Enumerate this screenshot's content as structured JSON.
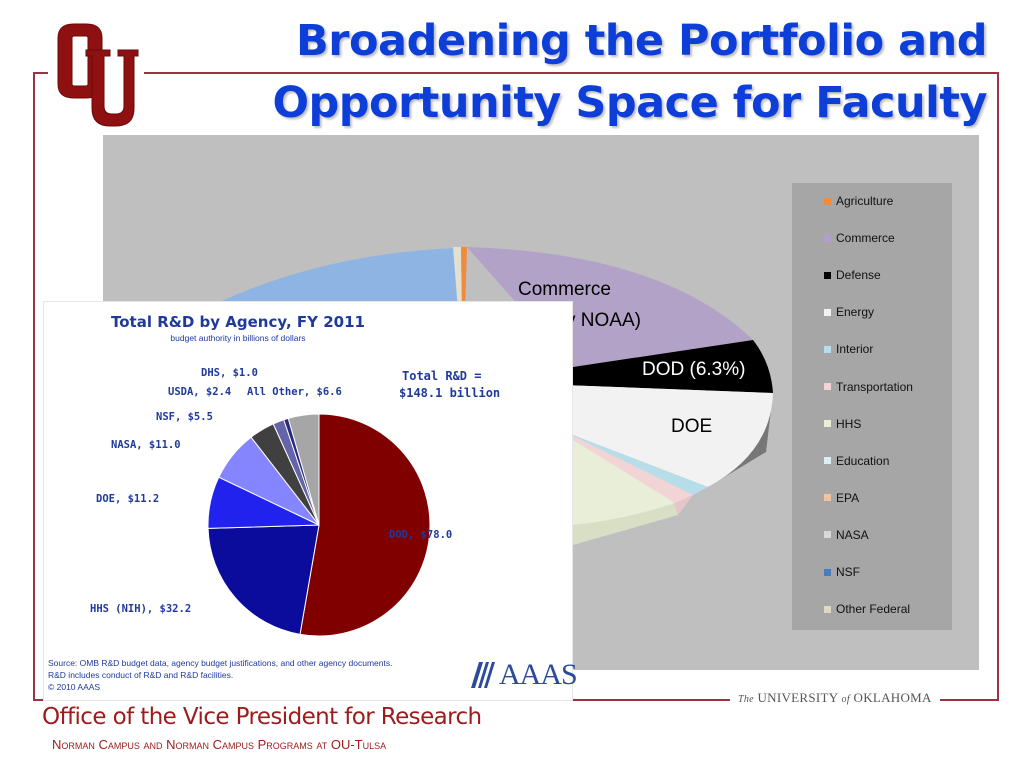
{
  "slide": {
    "title_line1": "Broadening the Portfolio and",
    "title_line2": "Opportunity Space for Faculty",
    "footer_office": "Office of the Vice President for Research",
    "footer_campus": "Norman Campus and Norman Campus Programs at OU-Tulsa",
    "university": "UNIVERSITY",
    "university_the": "The",
    "university_of": "of",
    "university_state": "OKLAHOMA",
    "logo_text": "OU",
    "colors": {
      "title_blue": "#0d3fd8",
      "crimson": "#9b1c1c",
      "frame": "#9b3440"
    }
  },
  "chart_data": [
    {
      "type": "pie",
      "style": "3d-exploded",
      "legend_position": "right",
      "legend": [
        "Agriculture",
        "Commerce",
        "Defense",
        "Energy",
        "Interior",
        "Transportation",
        "HHS",
        "Education",
        "EPA",
        "NASA",
        "NSF",
        "Other Federal"
      ],
      "legend_colors": [
        "#f08a3c",
        "#b09fcc",
        "#000000",
        "#f2f2f2",
        "#b7dde8",
        "#f2d4d6",
        "#e9eed9",
        "#dbeef4",
        "#f6c29c",
        "#d9d9d9",
        "#4a7ebb",
        "#ddd9c3"
      ],
      "visible_labels": [
        "Commerce",
        "y NOAA)",
        "DOD (6.3%)",
        "DOE"
      ]
    },
    {
      "type": "pie",
      "title": "Total R&D by Agency, FY 2011",
      "subtitle": "budget authority in billions of dollars",
      "total_line1": "Total R&D =",
      "total_line2": "$148.1 billion",
      "slices": [
        {
          "label": "DOD, $78.0",
          "value": 78.0,
          "color": "#800000"
        },
        {
          "label": "HHS (NIH), $32.2",
          "value": 32.2,
          "color": "#0b0b9c"
        },
        {
          "label": "DOE, $11.2",
          "value": 11.2,
          "color": "#2222ee"
        },
        {
          "label": "NASA, $11.0",
          "value": 11.0,
          "color": "#8585ff"
        },
        {
          "label": "NSF, $5.5",
          "value": 5.5,
          "color": "#404040"
        },
        {
          "label": "USDA, $2.4",
          "value": 2.4,
          "color": "#6464aa"
        },
        {
          "label": "DHS, $1.0",
          "value": 1.0,
          "color": "#2a2a80"
        },
        {
          "label": "All Other, $6.6",
          "value": 6.6,
          "color": "#a6a6a6"
        }
      ],
      "source_lines": [
        "Source: OMB R&D budget data, agency budget justifications, and other agency documents.",
        "R&D includes conduct of R&D and R&D facilities.",
        "© 2010 AAAS"
      ],
      "brand": "AAAS"
    }
  ]
}
